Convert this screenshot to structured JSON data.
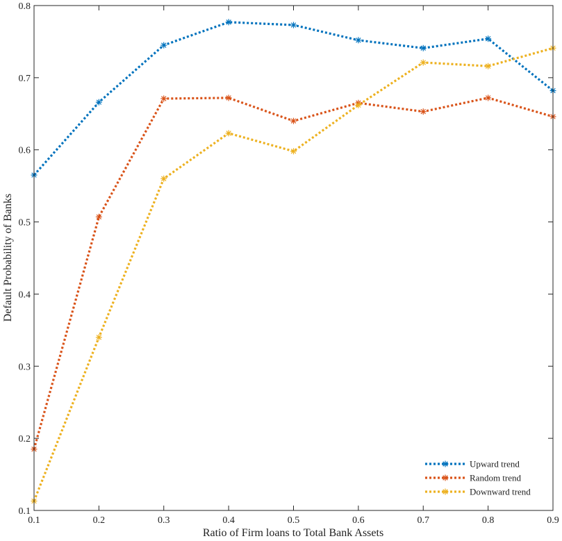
{
  "chart_data": {
    "type": "line",
    "title": "",
    "xlabel": "Ratio of Firm loans to Total Bank Assets",
    "ylabel": "Default Probability of Banks",
    "xlim": [
      0.1,
      0.9
    ],
    "ylim": [
      0.1,
      0.8
    ],
    "x": [
      0.1,
      0.2,
      0.3,
      0.4,
      0.5,
      0.6,
      0.7,
      0.8,
      0.9
    ],
    "xticks": [
      "0.1",
      "0.2",
      "0.3",
      "0.4",
      "0.5",
      "0.6",
      "0.7",
      "0.8",
      "0.9"
    ],
    "yticks": [
      "0.1",
      "0.2",
      "0.3",
      "0.4",
      "0.5",
      "0.6",
      "0.7",
      "0.8"
    ],
    "legend_position": "bottom-right",
    "series": [
      {
        "name": "Upward trend",
        "color": "#0072BD",
        "marker": "asterisk",
        "linestyle": "dotted",
        "values": [
          0.565,
          0.666,
          0.745,
          0.777,
          0.773,
          0.752,
          0.741,
          0.754,
          0.682
        ]
      },
      {
        "name": "Random trend",
        "color": "#D95319",
        "marker": "asterisk",
        "linestyle": "dotted",
        "values": [
          0.185,
          0.507,
          0.671,
          0.672,
          0.64,
          0.665,
          0.653,
          0.672,
          0.646
        ]
      },
      {
        "name": "Downward trend",
        "color": "#EDB120",
        "marker": "asterisk",
        "linestyle": "dotted",
        "values": [
          0.113,
          0.34,
          0.56,
          0.623,
          0.598,
          0.662,
          0.721,
          0.716,
          0.741
        ]
      }
    ]
  }
}
